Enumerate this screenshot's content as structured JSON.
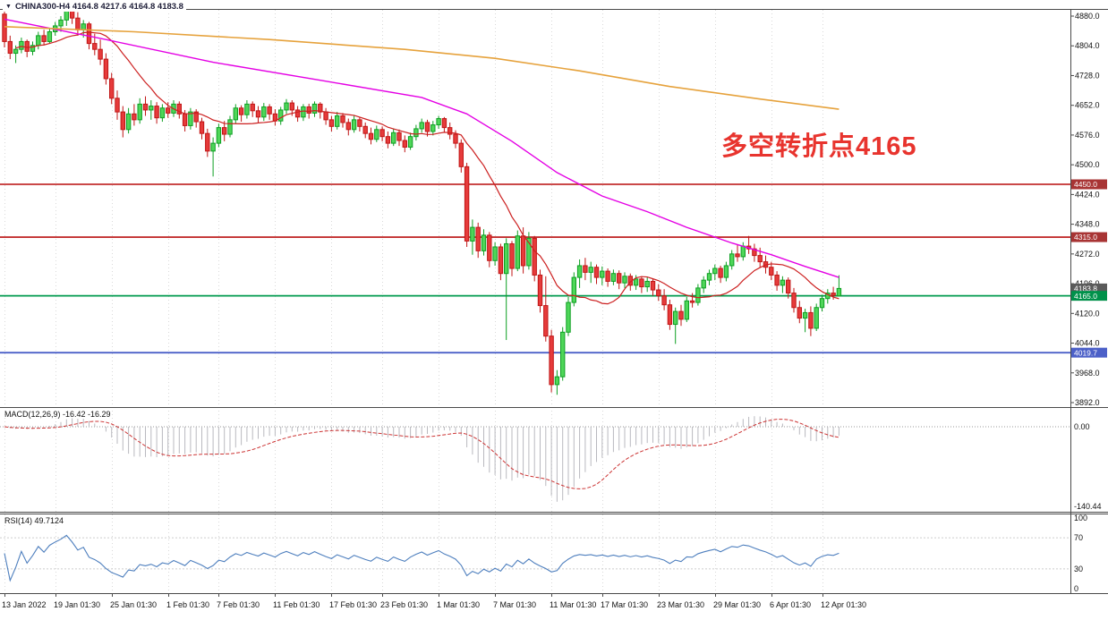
{
  "window": {
    "title_icon": "▼",
    "title": "CHINA300-H4  4164.8 4217.6 4164.8 4183.8"
  },
  "annotation": {
    "text": "多空转折点4165",
    "color": "#e8342e"
  },
  "colors": {
    "up_stroke": "#0d9f22",
    "up_fill": "#4fd659",
    "down_stroke": "#c01616",
    "down_fill": "#e63b3b",
    "grid": "#d9d9d9",
    "frame": "#4a4a4a",
    "hline_red": "#c22f2f",
    "hline_green": "#009a4e",
    "hline_blue": "#4c60c8",
    "ma_red": "#cc2020",
    "ma_magenta": "#e400e4",
    "ma_orange": "#e6a23c",
    "macd_bar": "#b9b9bf",
    "macd_signal": "#cc3333",
    "rsi_line": "#4e7fbe"
  },
  "chart_data": {
    "type": "candlestick",
    "symbol": "CHINA300",
    "timeframe": "H4",
    "last_ohlc": {
      "open": 4164.8,
      "high": 4217.6,
      "low": 4164.8,
      "close": 4183.8
    },
    "price_axis": {
      "tick_labels": [
        "4880.0",
        "4804.0",
        "4728.0",
        "4652.0",
        "4576.0",
        "4500.0",
        "4424.0",
        "4348.0",
        "4272.0",
        "4196.0",
        "4120.0",
        "4044.0",
        "3968.0",
        "3892.0"
      ]
    },
    "hlines": [
      {
        "price": 4450.0,
        "label": "4450.0",
        "color": "#c22f2f",
        "box": "#a83434"
      },
      {
        "price": 4315.0,
        "label": "4315.0",
        "color": "#c22f2f",
        "box": "#a83434"
      },
      {
        "price": 4165.0,
        "label": "4165.0",
        "color": "#009a4e",
        "box": "#00914a"
      },
      {
        "price": 4019.7,
        "label": "4019.7",
        "color": "#4c60c8",
        "box": "#4c60c8"
      }
    ],
    "current_price": {
      "price": 4183.8,
      "label": "4183.8",
      "box": "#5a5a5a"
    },
    "candles": [
      [
        4885,
        4892,
        4800,
        4815
      ],
      [
        4815,
        4830,
        4770,
        4785
      ],
      [
        4785,
        4805,
        4760,
        4795
      ],
      [
        4795,
        4825,
        4785,
        4815
      ],
      [
        4815,
        4820,
        4775,
        4790
      ],
      [
        4790,
        4815,
        4780,
        4805
      ],
      [
        4805,
        4840,
        4795,
        4830
      ],
      [
        4830,
        4845,
        4805,
        4815
      ],
      [
        4815,
        4850,
        4810,
        4840
      ],
      [
        4840,
        4865,
        4830,
        4855
      ],
      [
        4855,
        4880,
        4840,
        4870
      ],
      [
        4870,
        4905,
        4855,
        4895
      ],
      [
        4895,
        4910,
        4860,
        4875
      ],
      [
        4875,
        4890,
        4830,
        4845
      ],
      [
        4845,
        4870,
        4825,
        4860
      ],
      [
        4860,
        4865,
        4795,
        4810
      ],
      [
        4810,
        4835,
        4780,
        4795
      ],
      [
        4795,
        4820,
        4755,
        4770
      ],
      [
        4770,
        4785,
        4705,
        4720
      ],
      [
        4720,
        4735,
        4655,
        4670
      ],
      [
        4670,
        4690,
        4615,
        4635
      ],
      [
        4635,
        4650,
        4570,
        4590
      ],
      [
        4590,
        4645,
        4580,
        4630
      ],
      [
        4630,
        4655,
        4600,
        4615
      ],
      [
        4615,
        4670,
        4605,
        4655
      ],
      [
        4655,
        4675,
        4625,
        4640
      ],
      [
        4640,
        4665,
        4615,
        4650
      ],
      [
        4650,
        4660,
        4605,
        4620
      ],
      [
        4620,
        4655,
        4610,
        4645
      ],
      [
        4645,
        4660,
        4620,
        4632
      ],
      [
        4632,
        4665,
        4622,
        4655
      ],
      [
        4655,
        4662,
        4618,
        4630
      ],
      [
        4630,
        4640,
        4585,
        4600
      ],
      [
        4600,
        4645,
        4590,
        4635
      ],
      [
        4635,
        4642,
        4595,
        4610
      ],
      [
        4610,
        4620,
        4565,
        4580
      ],
      [
        4580,
        4592,
        4520,
        4535
      ],
      [
        4535,
        4570,
        4470,
        4555
      ],
      [
        4555,
        4605,
        4545,
        4595
      ],
      [
        4595,
        4612,
        4560,
        4578
      ],
      [
        4578,
        4625,
        4570,
        4615
      ],
      [
        4615,
        4655,
        4605,
        4645
      ],
      [
        4645,
        4652,
        4610,
        4628
      ],
      [
        4628,
        4665,
        4618,
        4655
      ],
      [
        4655,
        4662,
        4622,
        4638
      ],
      [
        4638,
        4650,
        4608,
        4622
      ],
      [
        4622,
        4658,
        4612,
        4648
      ],
      [
        4648,
        4655,
        4615,
        4630
      ],
      [
        4630,
        4642,
        4600,
        4612
      ],
      [
        4612,
        4648,
        4602,
        4640
      ],
      [
        4640,
        4668,
        4630,
        4658
      ],
      [
        4658,
        4665,
        4625,
        4640
      ],
      [
        4640,
        4650,
        4610,
        4622
      ],
      [
        4622,
        4655,
        4612,
        4648
      ],
      [
        4648,
        4656,
        4618,
        4632
      ],
      [
        4632,
        4662,
        4622,
        4655
      ],
      [
        4655,
        4660,
        4618,
        4635
      ],
      [
        4635,
        4645,
        4602,
        4615
      ],
      [
        4615,
        4625,
        4585,
        4598
      ],
      [
        4598,
        4635,
        4590,
        4625
      ],
      [
        4625,
        4632,
        4595,
        4608
      ],
      [
        4608,
        4618,
        4575,
        4590
      ],
      [
        4590,
        4625,
        4582,
        4615
      ],
      [
        4615,
        4622,
        4585,
        4598
      ],
      [
        4598,
        4608,
        4568,
        4580
      ],
      [
        4580,
        4595,
        4552,
        4565
      ],
      [
        4565,
        4600,
        4558,
        4590
      ],
      [
        4590,
        4598,
        4560,
        4572
      ],
      [
        4572,
        4585,
        4542,
        4555
      ],
      [
        4555,
        4592,
        4548,
        4582
      ],
      [
        4582,
        4590,
        4548,
        4562
      ],
      [
        4562,
        4575,
        4532,
        4545
      ],
      [
        4545,
        4582,
        4538,
        4572
      ],
      [
        4572,
        4602,
        4562,
        4592
      ],
      [
        4592,
        4618,
        4582,
        4608
      ],
      [
        4608,
        4615,
        4572,
        4585
      ],
      [
        4585,
        4612,
        4575,
        4602
      ],
      [
        4602,
        4625,
        4592,
        4618
      ],
      [
        4618,
        4622,
        4582,
        4595
      ],
      [
        4595,
        4608,
        4565,
        4578
      ],
      [
        4578,
        4588,
        4542,
        4555
      ],
      [
        4555,
        4565,
        4480,
        4495
      ],
      [
        4495,
        4505,
        4290,
        4305
      ],
      [
        4305,
        4360,
        4270,
        4340
      ],
      [
        4340,
        4352,
        4262,
        4280
      ],
      [
        4280,
        4335,
        4268,
        4320
      ],
      [
        4320,
        4328,
        4238,
        4255
      ],
      [
        4255,
        4302,
        4242,
        4290
      ],
      [
        4290,
        4298,
        4205,
        4222
      ],
      [
        4222,
        4312,
        4052,
        4298
      ],
      [
        4298,
        4305,
        4215,
        4235
      ],
      [
        4235,
        4332,
        4228,
        4318
      ],
      [
        4318,
        4340,
        4222,
        4242
      ],
      [
        4242,
        4328,
        4232,
        4312
      ],
      [
        4312,
        4318,
        4202,
        4218
      ],
      [
        4218,
        4232,
        4122,
        4140
      ],
      [
        4140,
        4215,
        4048,
        4062
      ],
      [
        4062,
        4078,
        3918,
        3938
      ],
      [
        3938,
        3975,
        3912,
        3958
      ],
      [
        3958,
        4085,
        3948,
        4072
      ],
      [
        4072,
        4162,
        4062,
        4148
      ],
      [
        4148,
        4225,
        4138,
        4212
      ],
      [
        4212,
        4258,
        4185,
        4242
      ],
      [
        4242,
        4262,
        4205,
        4225
      ],
      [
        4225,
        4252,
        4198,
        4238
      ],
      [
        4238,
        4245,
        4195,
        4212
      ],
      [
        4212,
        4240,
        4192,
        4228
      ],
      [
        4228,
        4235,
        4188,
        4202
      ],
      [
        4202,
        4232,
        4192,
        4222
      ],
      [
        4222,
        4230,
        4182,
        4198
      ],
      [
        4198,
        4225,
        4185,
        4215
      ],
      [
        4215,
        4222,
        4178,
        4192
      ],
      [
        4192,
        4218,
        4180,
        4208
      ],
      [
        4208,
        4215,
        4172,
        4188
      ],
      [
        4188,
        4212,
        4175,
        4202
      ],
      [
        4202,
        4210,
        4165,
        4180
      ],
      [
        4180,
        4195,
        4152,
        4165
      ],
      [
        4165,
        4182,
        4128,
        4142
      ],
      [
        4142,
        4155,
        4078,
        4092
      ],
      [
        4092,
        4135,
        4042,
        4125
      ],
      [
        4125,
        4142,
        4088,
        4105
      ],
      [
        4105,
        4162,
        4098,
        4152
      ],
      [
        4152,
        4172,
        4135,
        4148
      ],
      [
        4148,
        4195,
        4140,
        4185
      ],
      [
        4185,
        4215,
        4172,
        4205
      ],
      [
        4205,
        4232,
        4192,
        4222
      ],
      [
        4222,
        4245,
        4205,
        4235
      ],
      [
        4235,
        4242,
        4198,
        4212
      ],
      [
        4212,
        4252,
        4202,
        4242
      ],
      [
        4242,
        4282,
        4232,
        4272
      ],
      [
        4272,
        4295,
        4252,
        4265
      ],
      [
        4265,
        4302,
        4255,
        4292
      ],
      [
        4292,
        4318,
        4272,
        4285
      ],
      [
        4285,
        4298,
        4252,
        4268
      ],
      [
        4268,
        4288,
        4238,
        4252
      ],
      [
        4252,
        4268,
        4222,
        4238
      ],
      [
        4238,
        4252,
        4205,
        4218
      ],
      [
        4218,
        4228,
        4178,
        4192
      ],
      [
        4192,
        4215,
        4172,
        4205
      ],
      [
        4205,
        4212,
        4158,
        4172
      ],
      [
        4172,
        4185,
        4122,
        4135
      ],
      [
        4135,
        4152,
        4095,
        4108
      ],
      [
        4108,
        4132,
        4072,
        4122
      ],
      [
        4122,
        4138,
        4062,
        4082
      ],
      [
        4082,
        4145,
        4075,
        4135
      ],
      [
        4135,
        4168,
        4125,
        4158
      ],
      [
        4158,
        4182,
        4145,
        4172
      ],
      [
        4172,
        4188,
        4155,
        4166
      ],
      [
        4164.8,
        4217.6,
        4164.8,
        4183.8
      ]
    ],
    "moving_averages": {
      "red_ma": {
        "color": "#cc2020",
        "period": 13
      },
      "magenta_ma": {
        "color": "#e400e4",
        "points": [
          [
            0,
            4872
          ],
          [
            18,
            4820
          ],
          [
            37,
            4762
          ],
          [
            56,
            4716
          ],
          [
            74,
            4672
          ],
          [
            82,
            4630
          ],
          [
            90,
            4560
          ],
          [
            98,
            4480
          ],
          [
            106,
            4420
          ],
          [
            114,
            4380
          ],
          [
            121,
            4340
          ],
          [
            129,
            4300
          ],
          [
            136,
            4270
          ],
          [
            142,
            4240
          ],
          [
            148,
            4212
          ]
        ]
      },
      "orange_ma": {
        "color": "#e6a23c",
        "points": [
          [
            0,
            4853
          ],
          [
            23,
            4840
          ],
          [
            47,
            4820
          ],
          [
            71,
            4795
          ],
          [
            87,
            4772
          ],
          [
            102,
            4740
          ],
          [
            118,
            4700
          ],
          [
            134,
            4668
          ],
          [
            148,
            4642
          ]
        ]
      }
    },
    "time_axis": {
      "ticks": [
        {
          "label": "13 Jan 2022",
          "index": 0
        },
        {
          "label": "19 Jan 01:30",
          "index": 9
        },
        {
          "label": "25 Jan 01:30",
          "index": 19
        },
        {
          "label": "1 Feb 01:30",
          "index": 29
        },
        {
          "label": "7 Feb 01:30",
          "index": 38
        },
        {
          "label": "11 Feb 01:30",
          "index": 48
        },
        {
          "label": "17 Feb 01:30",
          "index": 58
        },
        {
          "label": "23 Feb 01:30",
          "index": 67
        },
        {
          "label": "1 Mar 01:30",
          "index": 77
        },
        {
          "label": "7 Mar 01:30",
          "index": 87
        },
        {
          "label": "11 Mar 01:30",
          "index": 97
        },
        {
          "label": "17 Mar 01:30",
          "index": 106
        },
        {
          "label": "23 Mar 01:30",
          "index": 116
        },
        {
          "label": "29 Mar 01:30",
          "index": 126
        },
        {
          "label": "6 Apr 01:30",
          "index": 136
        },
        {
          "label": "12 Apr 01:30",
          "index": 145
        }
      ]
    },
    "macd": {
      "label": "MACD(12,26,9) -16.42 -16.29",
      "fast": 12,
      "slow": 26,
      "signal_period": 9,
      "value": -16.42,
      "signal_value": -16.29,
      "axis_labels": [
        "0.00",
        "-140.44"
      ]
    },
    "rsi": {
      "label": "RSI(14) 49.7124",
      "period": 14,
      "value": 49.7124,
      "axis_labels": [
        "100",
        "70",
        "30",
        "0"
      ],
      "levels": [
        70,
        30
      ]
    }
  }
}
